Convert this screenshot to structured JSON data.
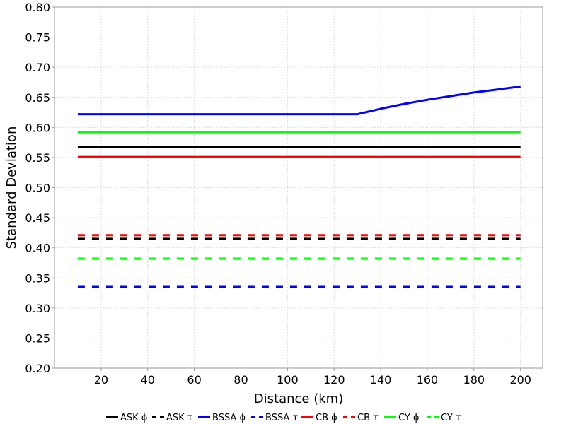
{
  "chart_data": {
    "type": "line",
    "title": "",
    "xlabel": "Distance (km)",
    "ylabel": "Standard Deviation",
    "xlim": [
      0,
      209.5
    ],
    "ylim": [
      0.2,
      0.8
    ],
    "x_ticks": [
      20,
      40,
      60,
      80,
      100,
      120,
      140,
      160,
      180,
      200
    ],
    "x_tick_labels": [
      "20",
      "40",
      "60",
      "80",
      "100",
      "120",
      "140",
      "160",
      "180",
      "200"
    ],
    "y_ticks": [
      0.2,
      0.25,
      0.3,
      0.35,
      0.4,
      0.45,
      0.5,
      0.55,
      0.6,
      0.65,
      0.7,
      0.75,
      0.8
    ],
    "y_tick_labels": [
      "0.20",
      "0.25",
      "0.30",
      "0.35",
      "0.40",
      "0.45",
      "0.50",
      "0.55",
      "0.60",
      "0.65",
      "0.70",
      "0.75",
      "0.80"
    ],
    "grid": true,
    "legend_position": "bottom",
    "series": [
      {
        "name": "ASK ϕ",
        "color": "#000000",
        "dash": "solid",
        "x": [
          10,
          200
        ],
        "y": [
          0.568,
          0.568
        ]
      },
      {
        "name": "ASK τ",
        "color": "#000000",
        "dash": "dashed",
        "x": [
          10,
          200
        ],
        "y": [
          0.415,
          0.415
        ]
      },
      {
        "name": "BSSA ϕ",
        "color": "#0000ff",
        "dash": "solid",
        "x": [
          10,
          130,
          140,
          150,
          160,
          170,
          180,
          190,
          200
        ],
        "y": [
          0.622,
          0.622,
          0.631,
          0.639,
          0.646,
          0.652,
          0.658,
          0.663,
          0.668
        ]
      },
      {
        "name": "BSSA τ",
        "color": "#0000ff",
        "dash": "dashed",
        "x": [
          10,
          200
        ],
        "y": [
          0.335,
          0.335
        ]
      },
      {
        "name": "CB ϕ",
        "color": "#ff0000",
        "dash": "solid",
        "x": [
          10,
          200
        ],
        "y": [
          0.551,
          0.551
        ]
      },
      {
        "name": "CB τ",
        "color": "#ff0000",
        "dash": "dashed",
        "x": [
          10,
          200
        ],
        "y": [
          0.421,
          0.421
        ]
      },
      {
        "name": "CY ϕ",
        "color": "#00ff00",
        "dash": "solid",
        "x": [
          10,
          200
        ],
        "y": [
          0.592,
          0.592
        ]
      },
      {
        "name": "CY τ",
        "color": "#00ff00",
        "dash": "dashed",
        "x": [
          10,
          200
        ],
        "y": [
          0.382,
          0.382
        ]
      }
    ]
  }
}
